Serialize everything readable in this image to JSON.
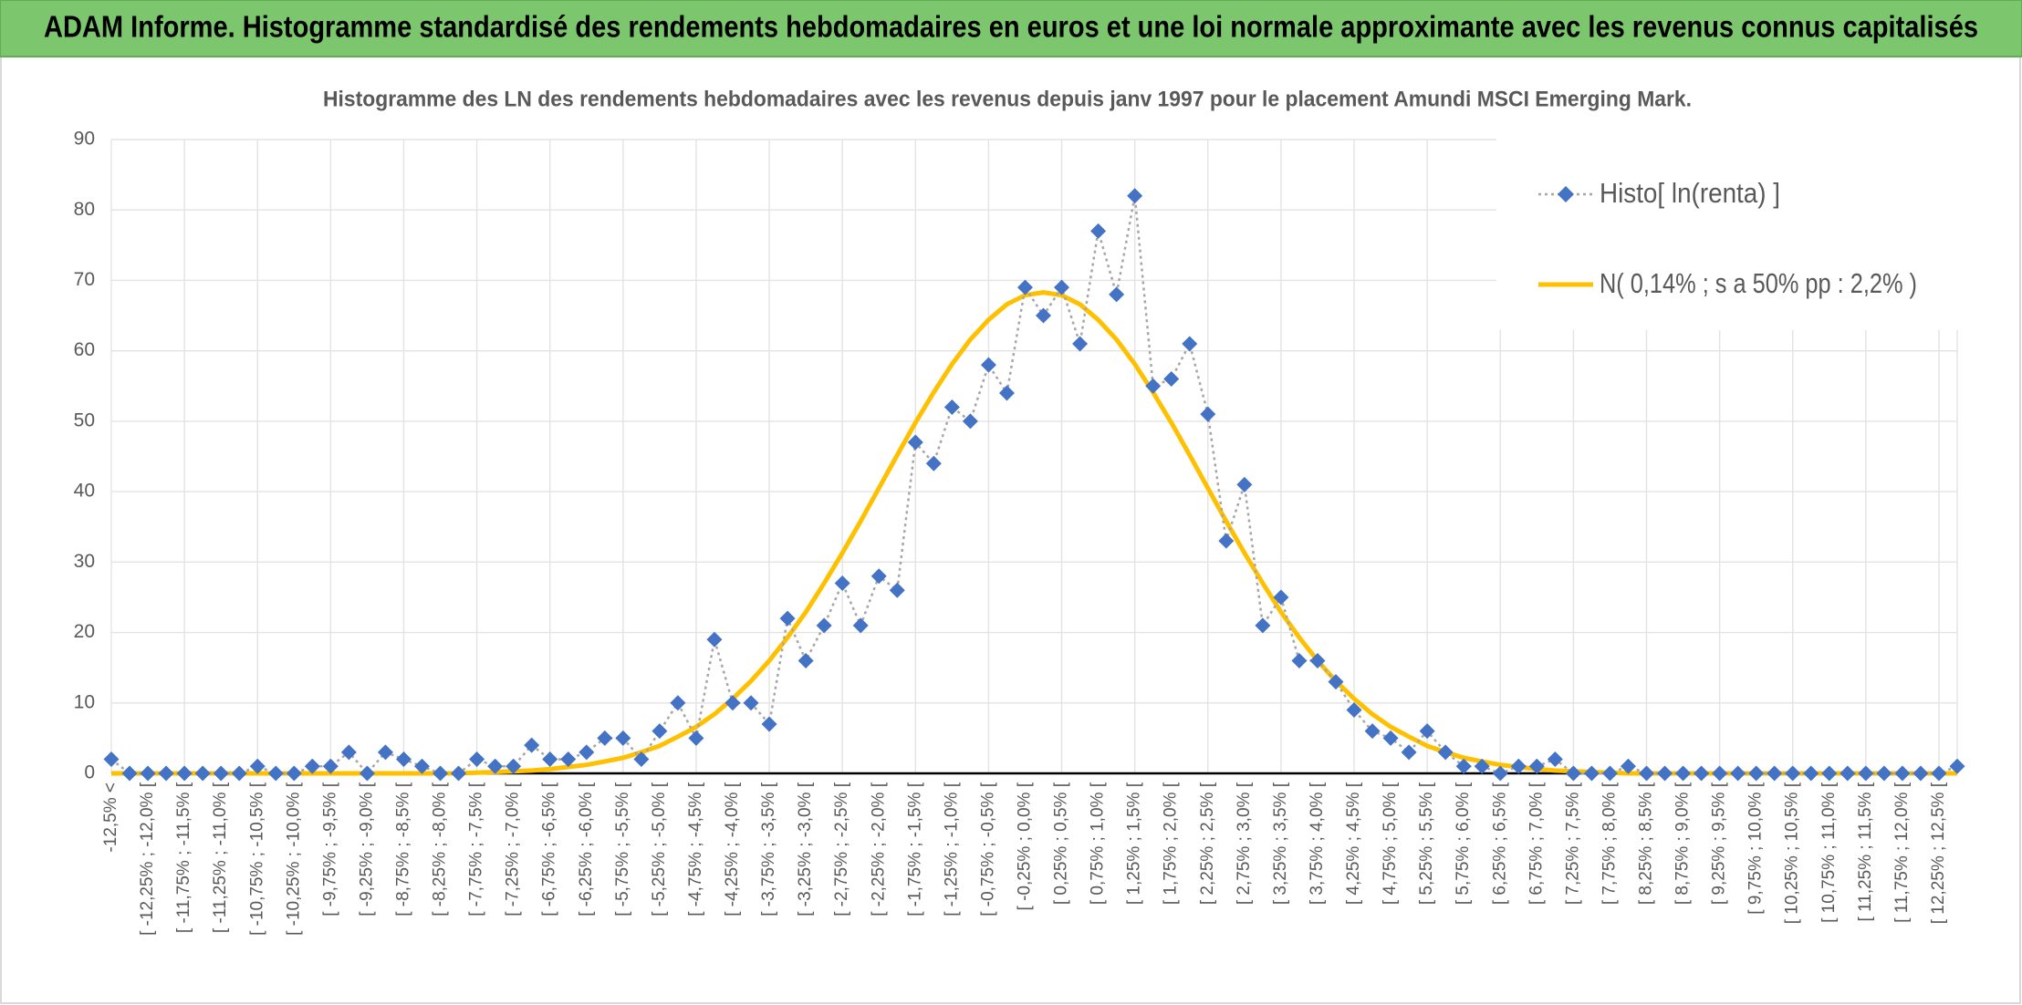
{
  "header": {
    "title": "ADAM Informe. Histogramme standardisé des rendements hebdomadaires en euros et une loi normale approximante avec les revenus connus capitalisés"
  },
  "chart_data": {
    "type": "line",
    "title": "Histogramme des LN des rendements hebdomadaires avec les revenus depuis janv 1997 pour le placement Amundi MSCI Emerging Mark.",
    "categories": [
      "-12,5% <",
      null,
      "[ -12,25% ; -12,0% [",
      null,
      "[ -11,75% ; -11,5% [",
      null,
      "[ -11,25% ; -11,0% [",
      null,
      "[ -10,75% ; -10,5% [",
      null,
      "[ -10,25% ; -10,0% [",
      null,
      "[ -9,75% ; -9,5% [",
      null,
      "[ -9,25% ; -9,0% [",
      null,
      "[ -8,75% ; -8,5% [",
      null,
      "[ -8,25% ; -8,0% [",
      null,
      "[ -7,75% ; -7,5% [",
      null,
      "[ -7,25% ; -7,0% [",
      null,
      "[ -6,75% ; -6,5% [",
      null,
      "[ -6,25% ; -6,0% [",
      null,
      "[ -5,75% ; -5,5% [",
      null,
      "[ -5,25% ; -5,0% [",
      null,
      "[ -4,75% ; -4,5% [",
      null,
      "[ -4,25% ; -4,0% [",
      null,
      "[ -3,75% ; -3,5% [",
      null,
      "[ -3,25% ; -3,0% [",
      null,
      "[ -2,75% ; -2,5% [",
      null,
      "[ -2,25% ; -2,0% [",
      null,
      "[ -1,75% ; -1,5% [",
      null,
      "[ -1,25% ; -1,0% [",
      null,
      "[ -0,75% ; -0,5% [",
      null,
      "[ -0,25% ; 0,0% [",
      null,
      "[ 0,25% ; 0,5% [",
      null,
      "[ 0,75% ; 1,0% [",
      null,
      "[ 1,25% ; 1,5% [",
      null,
      "[ 1,75% ; 2,0% [",
      null,
      "[ 2,25% ; 2,5% [",
      null,
      "[ 2,75% ; 3,0% [",
      null,
      "[ 3,25% ; 3,5% [",
      null,
      "[ 3,75% ; 4,0% [",
      null,
      "[ 4,25% ; 4,5% [",
      null,
      "[ 4,75% ; 5,0% [",
      null,
      "[ 5,25% ; 5,5% [",
      null,
      "[ 5,75% ; 6,0% [",
      null,
      "[ 6,25% ; 6,5% [",
      null,
      "[ 6,75% ; 7,0% [",
      null,
      "[ 7,25% ; 7,5% [",
      null,
      "[ 7,75% ; 8,0% [",
      null,
      "[ 8,25% ; 8,5% [",
      null,
      "[ 8,75% ; 9,0% [",
      null,
      "[ 9,25% ; 9,5% [",
      null,
      "[ 9,75% ; 10,0% [",
      null,
      "[ 10,25% ; 10,5% [",
      null,
      "[ 10,75% ; 11,0% [",
      null,
      "[ 11,25% ; 11,5% [",
      null,
      "[ 11,75% ; 12,0% [",
      null,
      "[ 12,25% ; 12,5% [",
      null
    ],
    "series": [
      {
        "name": "Histo[ ln(renta) ]",
        "color": "#4472c4",
        "line_color": "#a6a6a6",
        "values": [
          2,
          0,
          0,
          0,
          0,
          0,
          0,
          0,
          1,
          0,
          0,
          1,
          1,
          3,
          0,
          3,
          2,
          1,
          0,
          0,
          2,
          1,
          1,
          4,
          2,
          2,
          3,
          5,
          5,
          2,
          6,
          10,
          5,
          19,
          10,
          10,
          7,
          22,
          16,
          21,
          27,
          21,
          28,
          26,
          47,
          44,
          52,
          50,
          58,
          54,
          69,
          65,
          69,
          61,
          77,
          68,
          82,
          55,
          56,
          61,
          51,
          33,
          41,
          21,
          25,
          16,
          16,
          13,
          9,
          6,
          5,
          3,
          6,
          3,
          1,
          1,
          0,
          1,
          1,
          2,
          0,
          0,
          0,
          1,
          0,
          0,
          0,
          0,
          0,
          0,
          0,
          0,
          0,
          0,
          0,
          0,
          0,
          0,
          0,
          0,
          0,
          1
        ]
      },
      {
        "name": "N( 0,14% ; s a 50% pp : 2,2% )",
        "color": "#ffc000",
        "values": [
          0,
          0,
          0,
          0,
          0,
          0,
          0,
          0,
          0,
          0,
          0,
          0,
          0,
          0,
          0,
          0,
          0,
          0,
          0,
          0,
          0.1,
          0.2,
          0.3,
          0.4,
          0.6,
          0.9,
          1.2,
          1.7,
          2.2,
          3.0,
          3.9,
          5.2,
          6.6,
          8.4,
          10.6,
          13.1,
          16.0,
          19.3,
          22.9,
          27.0,
          31.3,
          35.8,
          40.5,
          45.2,
          49.8,
          54.1,
          58.1,
          61.6,
          64.4,
          66.6,
          67.9,
          68.3,
          67.9,
          66.6,
          64.4,
          61.6,
          58.1,
          54.1,
          49.8,
          45.2,
          40.5,
          35.8,
          31.3,
          27.0,
          22.9,
          19.3,
          16.0,
          13.1,
          10.6,
          8.4,
          6.6,
          5.2,
          3.9,
          3.0,
          2.2,
          1.7,
          1.2,
          0.9,
          0.6,
          0.4,
          0.3,
          0.2,
          0.1,
          0,
          0,
          0,
          0,
          0,
          0,
          0,
          0,
          0,
          0,
          0,
          0,
          0,
          0,
          0,
          0,
          0,
          0,
          0
        ]
      }
    ],
    "ylim": [
      0,
      90
    ],
    "yticks": [
      0,
      10,
      20,
      30,
      40,
      50,
      60,
      70,
      80,
      90
    ],
    "grid": true,
    "legend": "top-right"
  }
}
